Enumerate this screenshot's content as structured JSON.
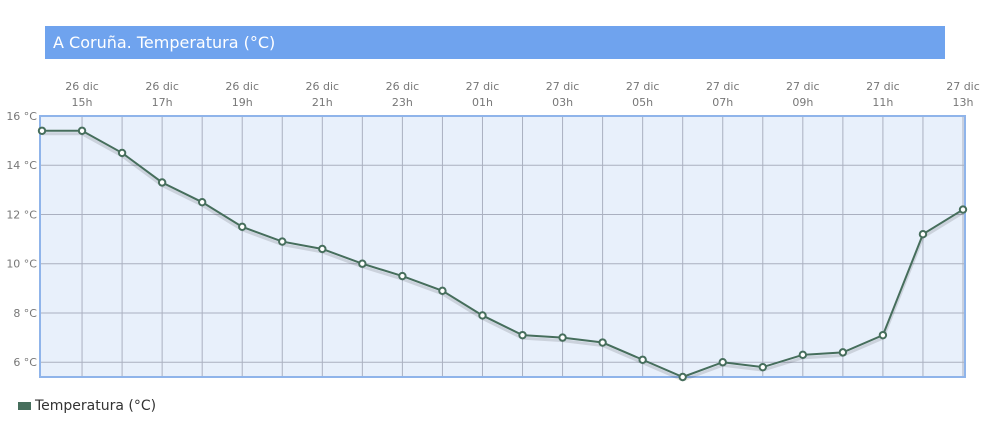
{
  "chart_data": {
    "type": "line",
    "title": "A Coruña. Temperatura (°C)",
    "x": [
      "26 dic 14h",
      "26 dic 15h",
      "26 dic 16h",
      "26 dic 17h",
      "26 dic 18h",
      "26 dic 19h",
      "26 dic 20h",
      "26 dic 21h",
      "26 dic 22h",
      "26 dic 23h",
      "27 dic 00h",
      "27 dic 01h",
      "27 dic 02h",
      "27 dic 03h",
      "27 dic 04h",
      "27 dic 05h",
      "27 dic 06h",
      "27 dic 07h",
      "27 dic 08h",
      "27 dic 09h",
      "27 dic 10h",
      "27 dic 11h",
      "27 dic 12h",
      "27 dic 13h"
    ],
    "x_tick_labels": [
      [
        "26 dic",
        "15h"
      ],
      [
        "26 dic",
        "17h"
      ],
      [
        "26 dic",
        "19h"
      ],
      [
        "26 dic",
        "21h"
      ],
      [
        "26 dic",
        "23h"
      ],
      [
        "27 dic",
        "01h"
      ],
      [
        "27 dic",
        "03h"
      ],
      [
        "27 dic",
        "05h"
      ],
      [
        "27 dic",
        "07h"
      ],
      [
        "27 dic",
        "09h"
      ],
      [
        "27 dic",
        "11h"
      ],
      [
        "27 dic",
        "13h"
      ]
    ],
    "series": [
      {
        "name": "Temperatura (°C)",
        "color": "#466e5c",
        "values": [
          15.4,
          15.4,
          14.5,
          13.3,
          12.5,
          11.5,
          10.9,
          10.6,
          10.0,
          9.5,
          8.9,
          7.9,
          7.1,
          7.0,
          6.8,
          6.1,
          5.4,
          6.0,
          5.8,
          6.3,
          6.4,
          7.1,
          11.2,
          12.2
        ]
      }
    ],
    "y_ticks": [
      "6 °C",
      "8 °C",
      "10 °C",
      "12 °C",
      "14 °C",
      "16 °C"
    ],
    "y_tick_values": [
      6,
      8,
      10,
      12,
      14,
      16
    ],
    "ylim": [
      5.4,
      16
    ],
    "grid": true,
    "legend": "bottom-left",
    "colors": {
      "plot_bg": "#e8f0fb",
      "border": "#8fb4ea",
      "title_bg": "#6fa3ee"
    }
  }
}
